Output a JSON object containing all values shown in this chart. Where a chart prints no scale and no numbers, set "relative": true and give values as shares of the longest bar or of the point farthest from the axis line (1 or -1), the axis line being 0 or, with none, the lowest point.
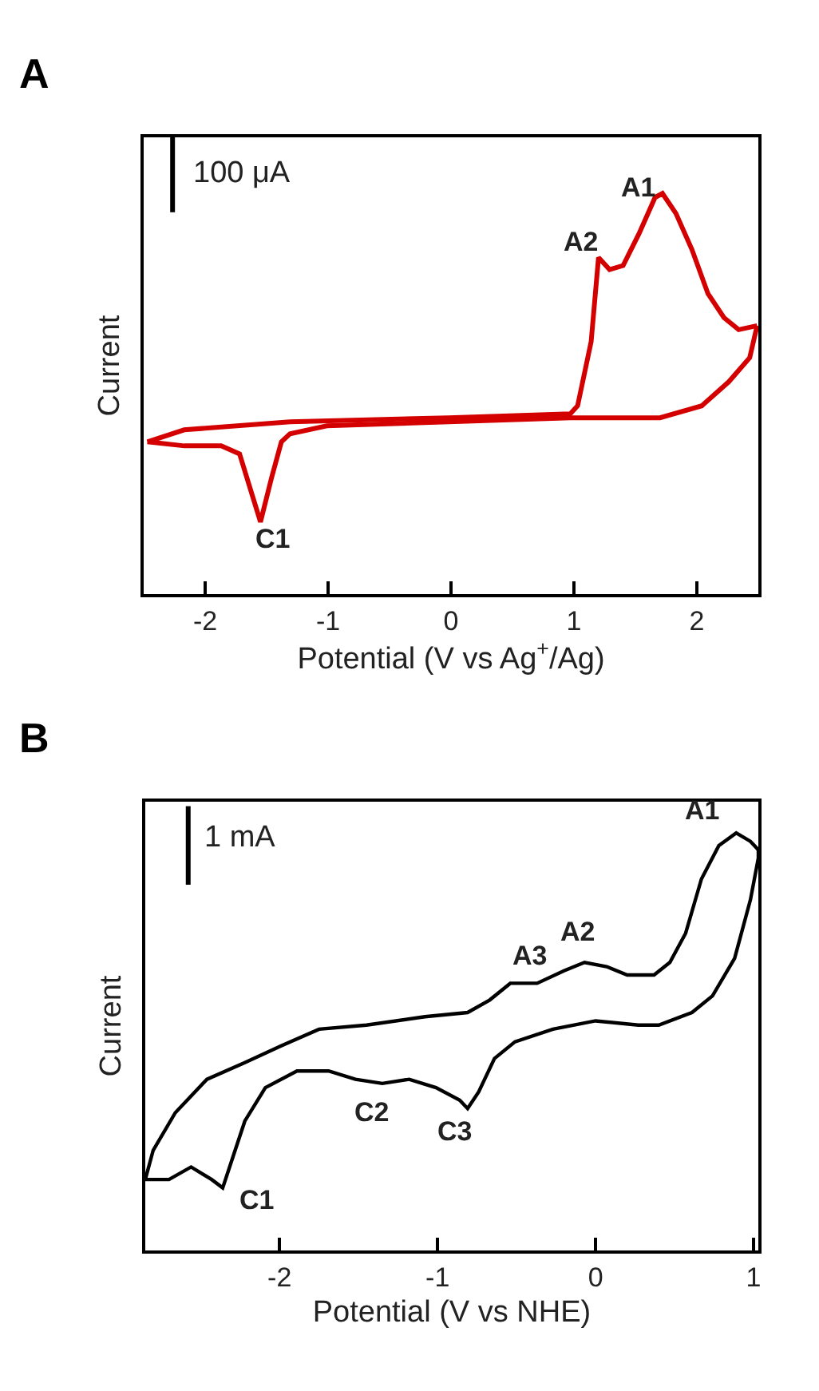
{
  "chart_data": [
    {
      "type": "line",
      "title": "A",
      "xlabel": "Potential (V vs Ag$^{+}$/Ag)",
      "ylabel": "Current",
      "relative": true,
      "xlim": [
        -2.5,
        2.5
      ],
      "xticks": [
        -2,
        -1,
        0,
        1,
        2
      ],
      "series": [
        {
          "color": "#d40000",
          "x": [
            -2.47,
            -2.17,
            -1.31,
            -0.02,
            0.97,
            1.03,
            1.14,
            1.2,
            1.29,
            1.4,
            1.53,
            1.66,
            1.72,
            1.83,
            1.96,
            2.09,
            2.22,
            2.34,
            2.49
          ],
          "values": [
            0.38,
            0.41,
            0.43,
            0.44,
            0.45,
            0.47,
            0.63,
            0.84,
            0.81,
            0.82,
            0.9,
            0.99,
            1.0,
            0.95,
            0.86,
            0.75,
            0.69,
            0.66,
            0.67
          ]
        },
        {
          "color": "#d40000",
          "x": [
            2.49,
            2.43,
            2.26,
            2.04,
            1.7,
            0.97,
            -0.02,
            -1.01,
            -1.31,
            -1.38,
            -1.46,
            -1.55,
            -1.63,
            -1.72,
            -1.87,
            -2.17,
            -2.47
          ],
          "values": [
            0.67,
            0.59,
            0.53,
            0.47,
            0.44,
            0.44,
            0.43,
            0.42,
            0.4,
            0.38,
            0.29,
            0.18,
            0.26,
            0.35,
            0.37,
            0.37,
            0.38
          ]
        }
      ],
      "annotations": [
        "100 μA",
        "C1",
        "A2",
        "A1"
      ]
    },
    {
      "type": "line",
      "title": "B",
      "xlabel": "Potential (V vs NHE)",
      "ylabel": "Current",
      "relative": true,
      "xlim": [
        -2.85,
        1.03
      ],
      "xticks": [
        -2,
        -1,
        0,
        1
      ],
      "series": [
        {
          "color": "#000000",
          "x": [
            -2.85,
            -2.8,
            -2.66,
            -2.46,
            -2.22,
            -1.99,
            -1.75,
            -1.45,
            -1.08,
            -0.81,
            -0.67,
            -0.54,
            -0.37,
            -0.2,
            -0.07,
            0.07,
            0.2,
            0.37,
            0.47,
            0.57,
            0.67,
            0.78,
            0.89,
            0.98,
            1.03
          ],
          "values": [
            0.17,
            0.24,
            0.33,
            0.41,
            0.45,
            0.49,
            0.53,
            0.54,
            0.56,
            0.57,
            0.6,
            0.64,
            0.64,
            0.67,
            0.69,
            0.68,
            0.66,
            0.66,
            0.69,
            0.76,
            0.89,
            0.97,
            1.0,
            0.98,
            0.96
          ]
        },
        {
          "color": "#000000",
          "x": [
            1.03,
            1.03,
            0.98,
            0.88,
            0.74,
            0.61,
            0.4,
            0.27,
            0.0,
            -0.27,
            -0.51,
            -0.64,
            -0.74,
            -0.81,
            -0.86,
            -1.01,
            -1.18,
            -1.35,
            -1.52,
            -1.69,
            -1.89,
            -2.09,
            -2.22,
            -2.29,
            -2.36,
            -2.43,
            -2.56,
            -2.7,
            -2.85
          ],
          "values": [
            0.96,
            0.94,
            0.84,
            0.7,
            0.61,
            0.57,
            0.54,
            0.54,
            0.55,
            0.53,
            0.5,
            0.46,
            0.38,
            0.34,
            0.36,
            0.39,
            0.41,
            0.4,
            0.41,
            0.43,
            0.43,
            0.39,
            0.31,
            0.23,
            0.15,
            0.17,
            0.2,
            0.17,
            0.17
          ]
        }
      ],
      "annotations": [
        "1 mA",
        "A1",
        "A3",
        "A2",
        "C2",
        "C3",
        "C1"
      ]
    }
  ]
}
